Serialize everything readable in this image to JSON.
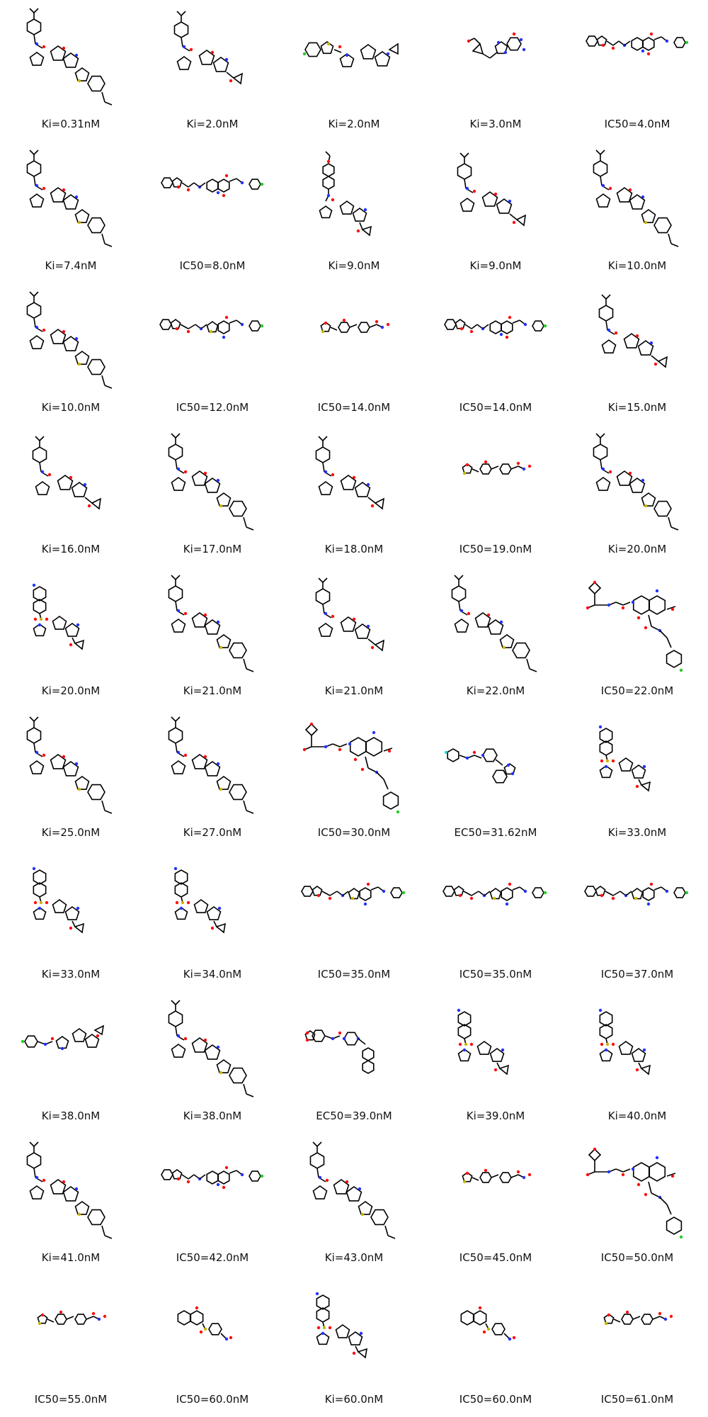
{
  "colors": {
    "bond": "#000000",
    "nitrogen": "#2233ff",
    "oxygen": "#ff0d0d",
    "sulfur": "#c8b400",
    "chlorine": "#22cc22",
    "fluorine": "#33cccc"
  },
  "compounds": [
    {
      "label": "Ki=0.31nM",
      "motif": "bicyclic-benzothiazole"
    },
    {
      "label": "Ki=2.0nM",
      "motif": "bicyclic-cyclopropyl"
    },
    {
      "label": "Ki=2.0nM",
      "motif": "benzothiophene-bicyclic"
    },
    {
      "label": "Ki=3.0nM",
      "motif": "small-heterocycle"
    },
    {
      "label": "IC50=4.0nM",
      "motif": "naphthyridinone-chain"
    },
    {
      "label": "Ki=7.4nM",
      "motif": "bicyclic-benzothiazole"
    },
    {
      "label": "IC50=8.0nM",
      "motif": "naphthyridinone-chain"
    },
    {
      "label": "Ki=9.0nM",
      "motif": "biaryl-bicyclic"
    },
    {
      "label": "Ki=9.0nM",
      "motif": "bicyclic-cyclopropyl"
    },
    {
      "label": "Ki=10.0nM",
      "motif": "bicyclic-benzothiazole"
    },
    {
      "label": "Ki=10.0nM",
      "motif": "bicyclic-benzothiazole"
    },
    {
      "label": "IC50=12.0nM",
      "motif": "thienopyridinone-chain"
    },
    {
      "label": "IC50=14.0nM",
      "motif": "hydroxamate-small"
    },
    {
      "label": "IC50=14.0nM",
      "motif": "naphthyridinone-chain"
    },
    {
      "label": "Ki=15.0nM",
      "motif": "bicyclic-cyclopropyl"
    },
    {
      "label": "Ki=16.0nM",
      "motif": "bicyclic-cyclopropyl"
    },
    {
      "label": "Ki=17.0nM",
      "motif": "bicyclic-benzothiazole"
    },
    {
      "label": "Ki=18.0nM",
      "motif": "bicyclic-cyclopropyl"
    },
    {
      "label": "IC50=19.0nM",
      "motif": "hydroxamate-small"
    },
    {
      "label": "Ki=20.0nM",
      "motif": "bicyclic-benzothiazole"
    },
    {
      "label": "Ki=20.0nM",
      "motif": "sulfonyl-bicyclic"
    },
    {
      "label": "Ki=21.0nM",
      "motif": "bicyclic-benzothiazole"
    },
    {
      "label": "Ki=21.0nM",
      "motif": "bicyclic-cyclopropyl"
    },
    {
      "label": "Ki=22.0nM",
      "motif": "bicyclic-benzothiazole"
    },
    {
      "label": "IC50=22.0nM",
      "motif": "naphthyridinone-large"
    },
    {
      "label": "Ki=25.0nM",
      "motif": "bicyclic-benzothiazole"
    },
    {
      "label": "Ki=27.0nM",
      "motif": "bicyclic-benzothiazole"
    },
    {
      "label": "IC50=30.0nM",
      "motif": "naphthyridinone-large"
    },
    {
      "label": "EC50=31.62nM",
      "motif": "piperidine-imidazole"
    },
    {
      "label": "Ki=33.0nM",
      "motif": "sulfonyl-bicyclic"
    },
    {
      "label": "Ki=33.0nM",
      "motif": "sulfonyl-bicyclic"
    },
    {
      "label": "Ki=34.0nM",
      "motif": "sulfonyl-bicyclic"
    },
    {
      "label": "IC50=35.0nM",
      "motif": "thienopyridinone-chain"
    },
    {
      "label": "IC50=35.0nM",
      "motif": "thienopyridinone-chain"
    },
    {
      "label": "IC50=37.0nM",
      "motif": "thienopyridinone-chain"
    },
    {
      "label": "Ki=38.0nM",
      "motif": "aryl-amide-bicyclic"
    },
    {
      "label": "Ki=38.0nM",
      "motif": "bicyclic-benzothiazole"
    },
    {
      "label": "EC50=39.0nM",
      "motif": "piperazine-naphthyl"
    },
    {
      "label": "Ki=39.0nM",
      "motif": "sulfonyl-bicyclic"
    },
    {
      "label": "Ki=40.0nM",
      "motif": "sulfonyl-bicyclic"
    },
    {
      "label": "Ki=41.0nM",
      "motif": "bicyclic-benzothiazole"
    },
    {
      "label": "IC50=42.0nM",
      "motif": "naphthyridinone-chain"
    },
    {
      "label": "Ki=43.0nM",
      "motif": "bicyclic-benzothiazole"
    },
    {
      "label": "IC50=45.0nM",
      "motif": "hydroxamate-small"
    },
    {
      "label": "IC50=50.0nM",
      "motif": "naphthyridinone-large"
    },
    {
      "label": "IC50=55.0nM",
      "motif": "hydroxamate-small"
    },
    {
      "label": "IC50=60.0nM",
      "motif": "chromenone-sulfonyl"
    },
    {
      "label": "Ki=60.0nM",
      "motif": "sulfonyl-bicyclic"
    },
    {
      "label": "IC50=60.0nM",
      "motif": "chromenone-sulfonyl"
    },
    {
      "label": "IC50=61.0nM",
      "motif": "hydroxamate-small"
    }
  ]
}
